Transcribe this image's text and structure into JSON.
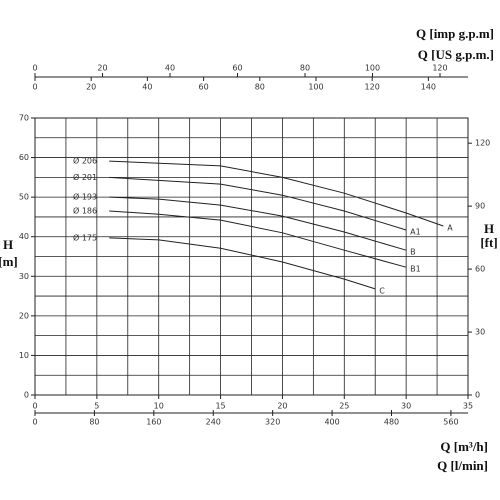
{
  "chart_data": {
    "type": "line",
    "x_label": "Q [m³/h]",
    "x2_label": "Q [imp g.p.m]",
    "x3_label": "Q [US g.p.m.]",
    "x4_label": "Q [l/min]",
    "y_label": {
      "symbol": "H",
      "unit": "[m]"
    },
    "y2_label": {
      "symbol": "H",
      "unit": "[ft]"
    },
    "xlim": [
      0,
      35
    ],
    "xticks": [
      0,
      5,
      10,
      15,
      20,
      25,
      30,
      35
    ],
    "x2lim": [
      0,
      128.3
    ],
    "x2ticks": [
      0,
      20,
      40,
      60,
      80,
      100,
      120
    ],
    "x3lim": [
      0,
      154.1
    ],
    "x3ticks": [
      0,
      20,
      40,
      60,
      80,
      100,
      120,
      140
    ],
    "x4lim": [
      0,
      583
    ],
    "x4ticks": [
      0,
      80,
      160,
      240,
      320,
      400,
      480,
      560
    ],
    "ylim": [
      0,
      70
    ],
    "yticks": [
      0,
      10,
      20,
      30,
      40,
      50,
      60,
      70
    ],
    "y2lim": [
      0,
      132
    ],
    "y2ticks": [
      0,
      30,
      60,
      90,
      120
    ],
    "grid": true,
    "series": [
      {
        "name": "A",
        "diameter": "Ø 206",
        "color": "#222",
        "x": [
          6,
          15,
          20,
          25,
          30,
          33
        ],
        "values": [
          59.1,
          57.9,
          55,
          51,
          46,
          42.7
        ]
      },
      {
        "name": "A1",
        "diameter": "Ø 201",
        "color": "#222",
        "x": [
          6,
          15,
          20,
          25,
          30
        ],
        "values": [
          55,
          53.3,
          50.5,
          46.5,
          41.7
        ]
      },
      {
        "name": "B",
        "diameter": "Ø 193",
        "color": "#222",
        "x": [
          6,
          10,
          15,
          20,
          25,
          30
        ],
        "values": [
          50,
          49.5,
          48,
          45.2,
          41.2,
          36.6
        ]
      },
      {
        "name": "B1",
        "diameter": "Ø 186",
        "color": "#222",
        "x": [
          6,
          10,
          15,
          20,
          25,
          30
        ],
        "values": [
          46.5,
          45.7,
          44.2,
          41,
          36.6,
          32.3
        ]
      },
      {
        "name": "C",
        "diameter": "Ø 175",
        "color": "#222",
        "x": [
          6,
          10,
          15,
          20,
          25,
          27.5
        ],
        "values": [
          39.7,
          39.2,
          37.1,
          33.6,
          29.3,
          26.8
        ]
      }
    ]
  }
}
